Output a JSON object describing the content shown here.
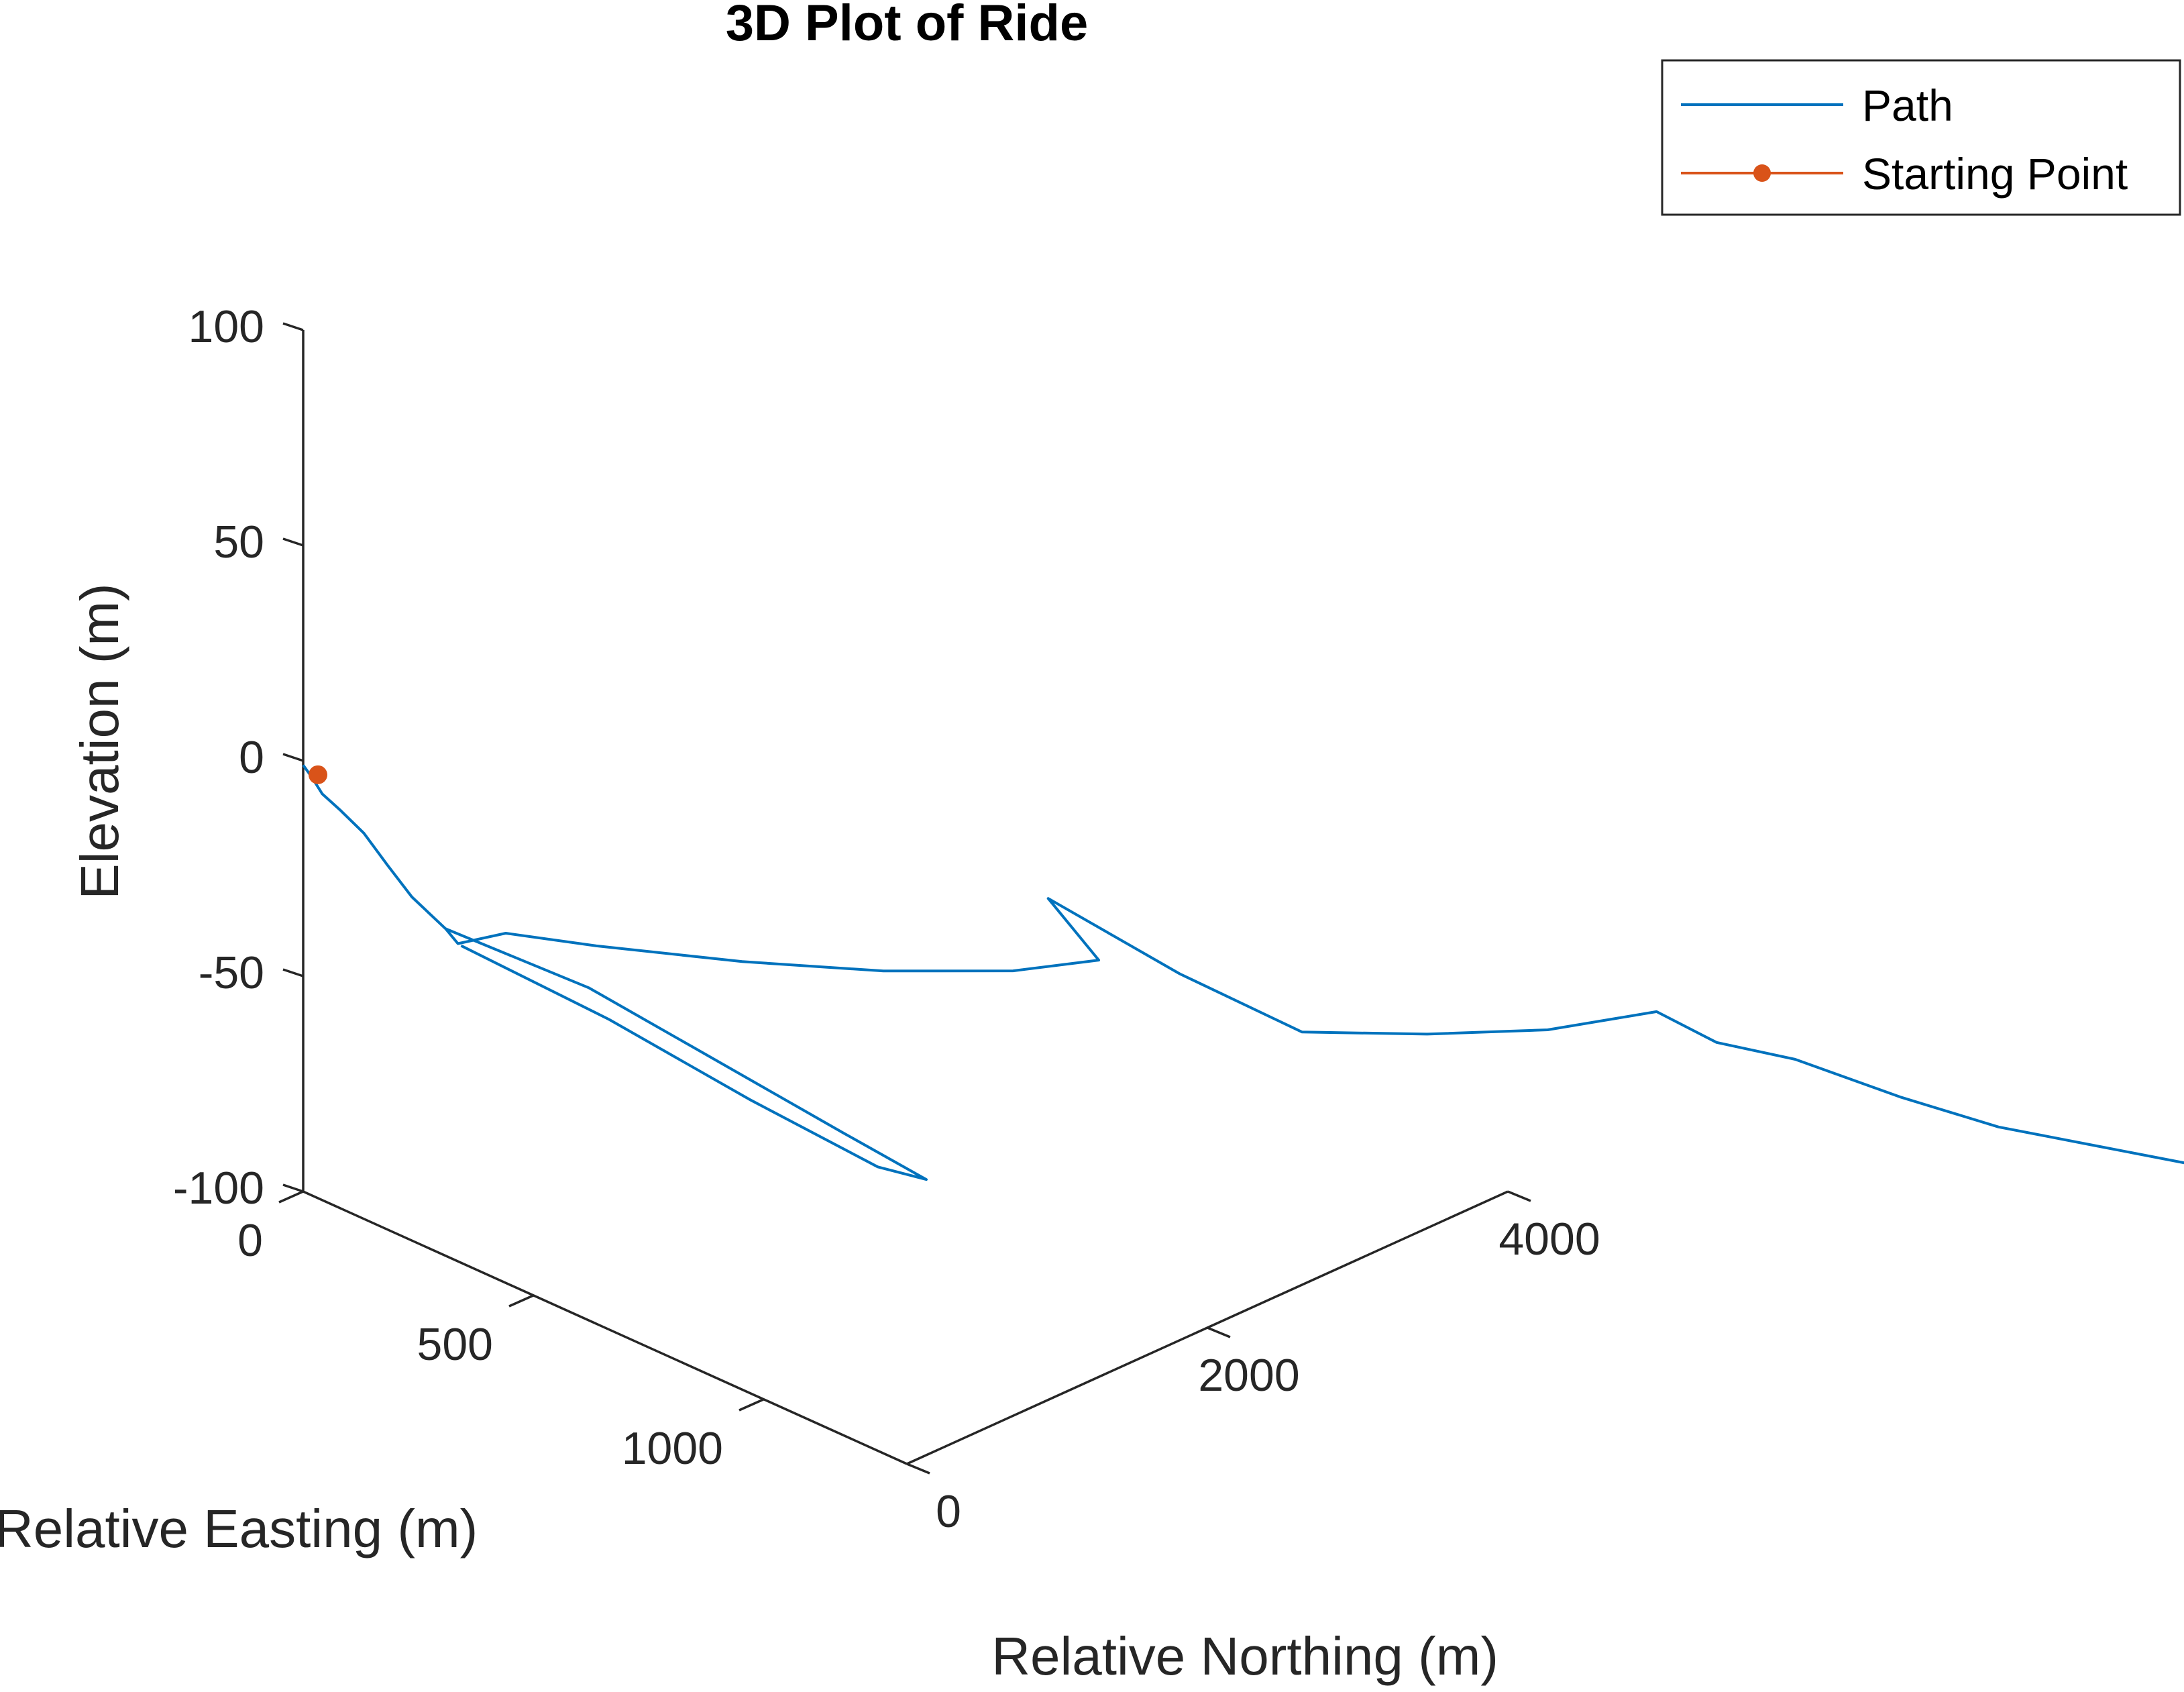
{
  "chart_data": {
    "type": "line",
    "projection": "3d",
    "title": "3D Plot of Ride",
    "xlabel": "Relative Easting (m)",
    "ylabel": "Relative Northing (m)",
    "zlabel": "Elevation (m)",
    "xlim": [
      0,
      1300
    ],
    "ylim": [
      0,
      4000
    ],
    "zlim": [
      -100,
      100
    ],
    "xticks": [
      {
        "value": 0,
        "label": "0"
      },
      {
        "value": 500,
        "label": "500"
      },
      {
        "value": 1000,
        "label": "1000"
      }
    ],
    "yticks": [
      {
        "value": 0,
        "label": "0"
      },
      {
        "value": 2000,
        "label": "2000"
      },
      {
        "value": 4000,
        "label": "4000"
      }
    ],
    "zticks": [
      {
        "value": -100,
        "label": "-100"
      },
      {
        "value": -50,
        "label": "-50"
      },
      {
        "value": 0,
        "label": "0"
      },
      {
        "value": 50,
        "label": "50"
      },
      {
        "value": 100,
        "label": "100"
      }
    ],
    "grid": false,
    "legend_position": "top-right",
    "series": [
      {
        "name": "Path",
        "color": "#0072BD",
        "style": "line",
        "points": [
          {
            "x": 0,
            "y": 0,
            "z": -1
          },
          {
            "x": 15,
            "y": 5,
            "z": -3
          },
          {
            "x": 35,
            "y": 10,
            "z": -6
          },
          {
            "x": 70,
            "y": 15,
            "z": -8
          },
          {
            "x": 120,
            "y": 18,
            "z": -11
          },
          {
            "x": 170,
            "y": 20,
            "z": -16
          },
          {
            "x": 220,
            "y": 25,
            "z": -21
          },
          {
            "x": 290,
            "y": 30,
            "z": -25
          },
          {
            "x": 320,
            "y": 25,
            "z": -27
          },
          {
            "x": 270,
            "y": 260,
            "z": -27
          },
          {
            "x": 310,
            "y": 500,
            "z": -28
          },
          {
            "x": 365,
            "y": 900,
            "z": -29
          },
          {
            "x": 410,
            "y": 1300,
            "z": -29
          },
          {
            "x": 430,
            "y": 1700,
            "z": -28
          },
          {
            "x": 420,
            "y": 2000,
            "z": -26
          },
          {
            "x": 310,
            "y": 2000,
            "z": -17
          },
          {
            "x": 465,
            "y": 2200,
            "z": -27
          },
          {
            "x": 600,
            "y": 2400,
            "z": -34
          },
          {
            "x": 610,
            "y": 2800,
            "z": -34
          },
          {
            "x": 610,
            "y": 3200,
            "z": -33
          },
          {
            "x": 585,
            "y": 3600,
            "z": -30
          },
          {
            "x": 650,
            "y": 3700,
            "z": -34
          },
          {
            "x": 690,
            "y": 3900,
            "z": -36
          },
          {
            "x": 790,
            "y": 4100,
            "z": -40
          },
          {
            "x": 870,
            "y": 4300,
            "z": -43
          },
          {
            "x": 920,
            "y": 4550,
            "z": -45
          },
          {
            "x": 970,
            "y": 4800,
            "z": -47
          },
          {
            "x": 1000,
            "y": 4820,
            "z": -49
          },
          {
            "x": 1010,
            "y": 4900,
            "z": -49
          },
          {
            "x": 1015,
            "y": 5000,
            "z": -49
          }
        ]
      },
      {
        "name": "Starting Point",
        "color": "#D95319",
        "style": "line-marker",
        "points": [
          {
            "x": 0,
            "y": 0,
            "z": -2
          }
        ]
      }
    ],
    "extra_traces": [
      {
        "color": "#0072BD",
        "points": [
          {
            "x": 290,
            "y": 30,
            "z": -25
          },
          {
            "x": 470,
            "y": 230,
            "z": -30
          },
          {
            "x": 630,
            "y": 330,
            "z": -36
          },
          {
            "x": 900,
            "y": 420,
            "z": -43
          },
          {
            "x": 1040,
            "y": 480,
            "z": -47
          },
          {
            "x": 1000,
            "y": 380,
            "z": -46
          },
          {
            "x": 800,
            "y": 260,
            "z": -40
          },
          {
            "x": 560,
            "y": 160,
            "z": -33
          },
          {
            "x": 330,
            "y": 20,
            "z": -27
          }
        ]
      }
    ]
  }
}
